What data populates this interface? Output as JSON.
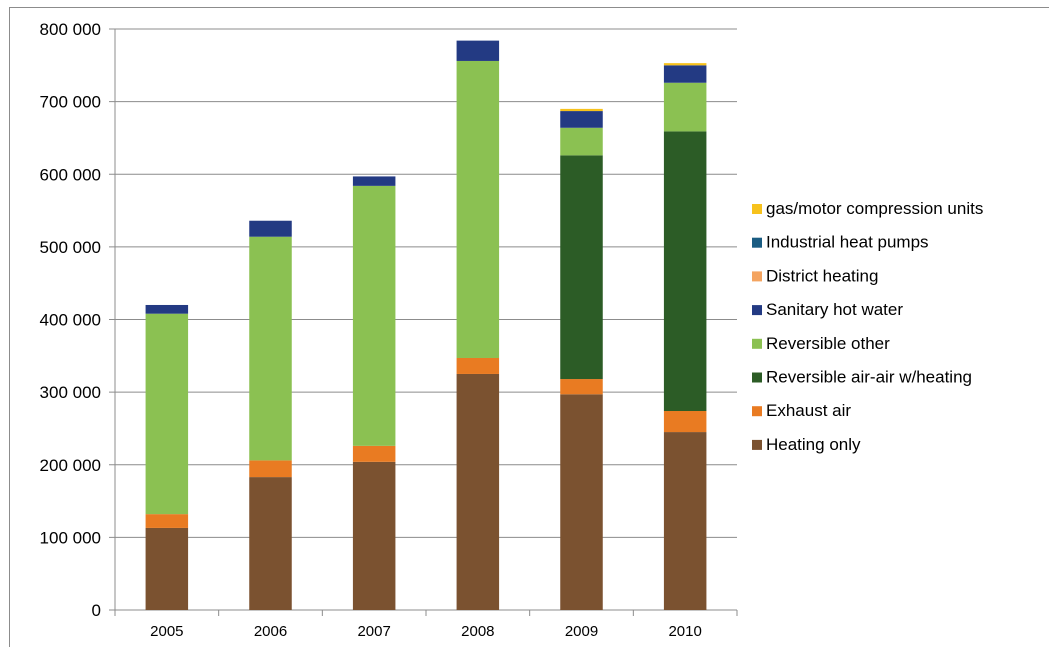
{
  "chart_data": {
    "type": "bar",
    "stacked": true,
    "title": "",
    "xlabel": "",
    "ylabel": "",
    "ylim": [
      0,
      800000
    ],
    "yticks": [
      0,
      100000,
      200000,
      300000,
      400000,
      500000,
      600000,
      700000,
      800000
    ],
    "ytick_labels": [
      "0",
      "100 000",
      "200 000",
      "300 000",
      "400 000",
      "500 000",
      "600 000",
      "700 000",
      "800 000"
    ],
    "categories": [
      "2005",
      "2006",
      "2007",
      "2008",
      "2009",
      "2010"
    ],
    "grid": true,
    "legend_position": "right",
    "series": [
      {
        "name": "Heating only",
        "color": "#7b5230",
        "values": [
          113000,
          183000,
          204000,
          325000,
          297000,
          245000
        ]
      },
      {
        "name": "Exhaust air",
        "color": "#e97b22",
        "values": [
          19000,
          23000,
          22000,
          22000,
          21000,
          29000
        ]
      },
      {
        "name": "Reversible air-air w/heating",
        "color": "#2c5c26",
        "values": [
          0,
          0,
          0,
          0,
          308000,
          385000
        ]
      },
      {
        "name": "Reversible other",
        "color": "#8bc152",
        "values": [
          276000,
          308000,
          358000,
          409000,
          38000,
          67000
        ]
      },
      {
        "name": "Sanitary hot water",
        "color": "#233a83",
        "values": [
          12000,
          22000,
          13000,
          28000,
          23000,
          24000
        ]
      },
      {
        "name": "District heating",
        "color": "#f4a460",
        "values": [
          0,
          0,
          0,
          0,
          0,
          0
        ]
      },
      {
        "name": "Industrial heat pumps",
        "color": "#1a5c82",
        "values": [
          0,
          0,
          0,
          0,
          0,
          0
        ]
      },
      {
        "name": "gas/motor compression units",
        "color": "#f7c21c",
        "values": [
          0,
          0,
          0,
          0,
          3000,
          3000
        ]
      }
    ],
    "legend_order": [
      "gas/motor compression units",
      "Industrial heat pumps",
      "District heating",
      "Sanitary hot water",
      "Reversible other",
      "Reversible air-air w/heating",
      "Exhaust air",
      "Heating only"
    ]
  }
}
